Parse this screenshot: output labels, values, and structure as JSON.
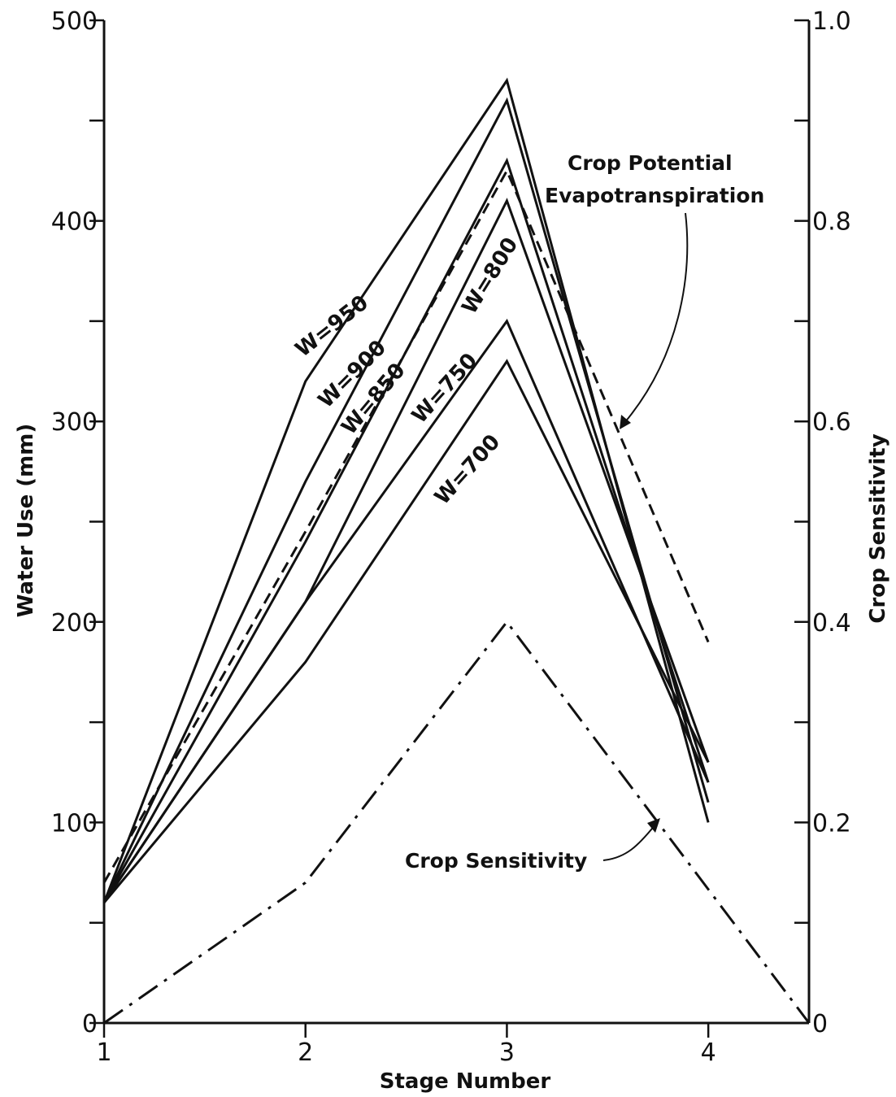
{
  "chart_data": {
    "type": "line",
    "xlabel": "Stage Number",
    "ylabel": "Water Use (mm)",
    "y2label": "Crop Sensitivity",
    "x_ticks": [
      "1",
      "2",
      "3",
      "4"
    ],
    "xlim": [
      1,
      4.5
    ],
    "ylim": [
      0,
      500
    ],
    "y2lim": [
      0,
      1.0
    ],
    "y_tick_labels": [
      "0",
      "100",
      "200",
      "300",
      "400",
      "500"
    ],
    "y2_tick_labels": [
      "0",
      "0.2",
      "0.4",
      "0.6",
      "0.8",
      "1.0"
    ],
    "series": [
      {
        "name": "W=950",
        "axis": "left",
        "style": "solid",
        "x": [
          1,
          2,
          3,
          4
        ],
        "values": [
          60,
          320,
          470,
          100
        ]
      },
      {
        "name": "W=900",
        "axis": "left",
        "style": "solid",
        "x": [
          1,
          2,
          3,
          4
        ],
        "values": [
          60,
          270,
          460,
          110
        ]
      },
      {
        "name": "W=850",
        "axis": "left",
        "style": "solid",
        "x": [
          1,
          2,
          3,
          4
        ],
        "values": [
          60,
          240,
          430,
          120
        ]
      },
      {
        "name": "W=800",
        "axis": "left",
        "style": "solid",
        "x": [
          1,
          2,
          3,
          4
        ],
        "values": [
          60,
          210,
          410,
          130
        ]
      },
      {
        "name": "W=750",
        "axis": "left",
        "style": "solid",
        "x": [
          1,
          2,
          3,
          4
        ],
        "values": [
          60,
          210,
          350,
          120
        ]
      },
      {
        "name": "W=700",
        "axis": "left",
        "style": "solid",
        "x": [
          1,
          2,
          3,
          4
        ],
        "values": [
          60,
          180,
          330,
          130
        ]
      },
      {
        "name": "Crop Potential Evapotranspiration",
        "axis": "left",
        "style": "dashed",
        "x": [
          1,
          2,
          3,
          4
        ],
        "values": [
          70,
          245,
          425,
          190
        ]
      },
      {
        "name": "Crop Sensitivity",
        "axis": "right",
        "style": "dashdot",
        "x": [
          1,
          2,
          3,
          4.5
        ],
        "values": [
          0,
          0.14,
          0.4,
          0
        ]
      }
    ],
    "annotations": [
      {
        "text": "Crop Potential",
        "refers_to": "Crop Potential Evapotranspiration"
      },
      {
        "text": "Evapotranspiration",
        "refers_to": "Crop Potential Evapotranspiration"
      },
      {
        "text": "Crop Sensitivity",
        "refers_to": "Crop Sensitivity"
      }
    ],
    "grid": false,
    "legend": "none"
  }
}
